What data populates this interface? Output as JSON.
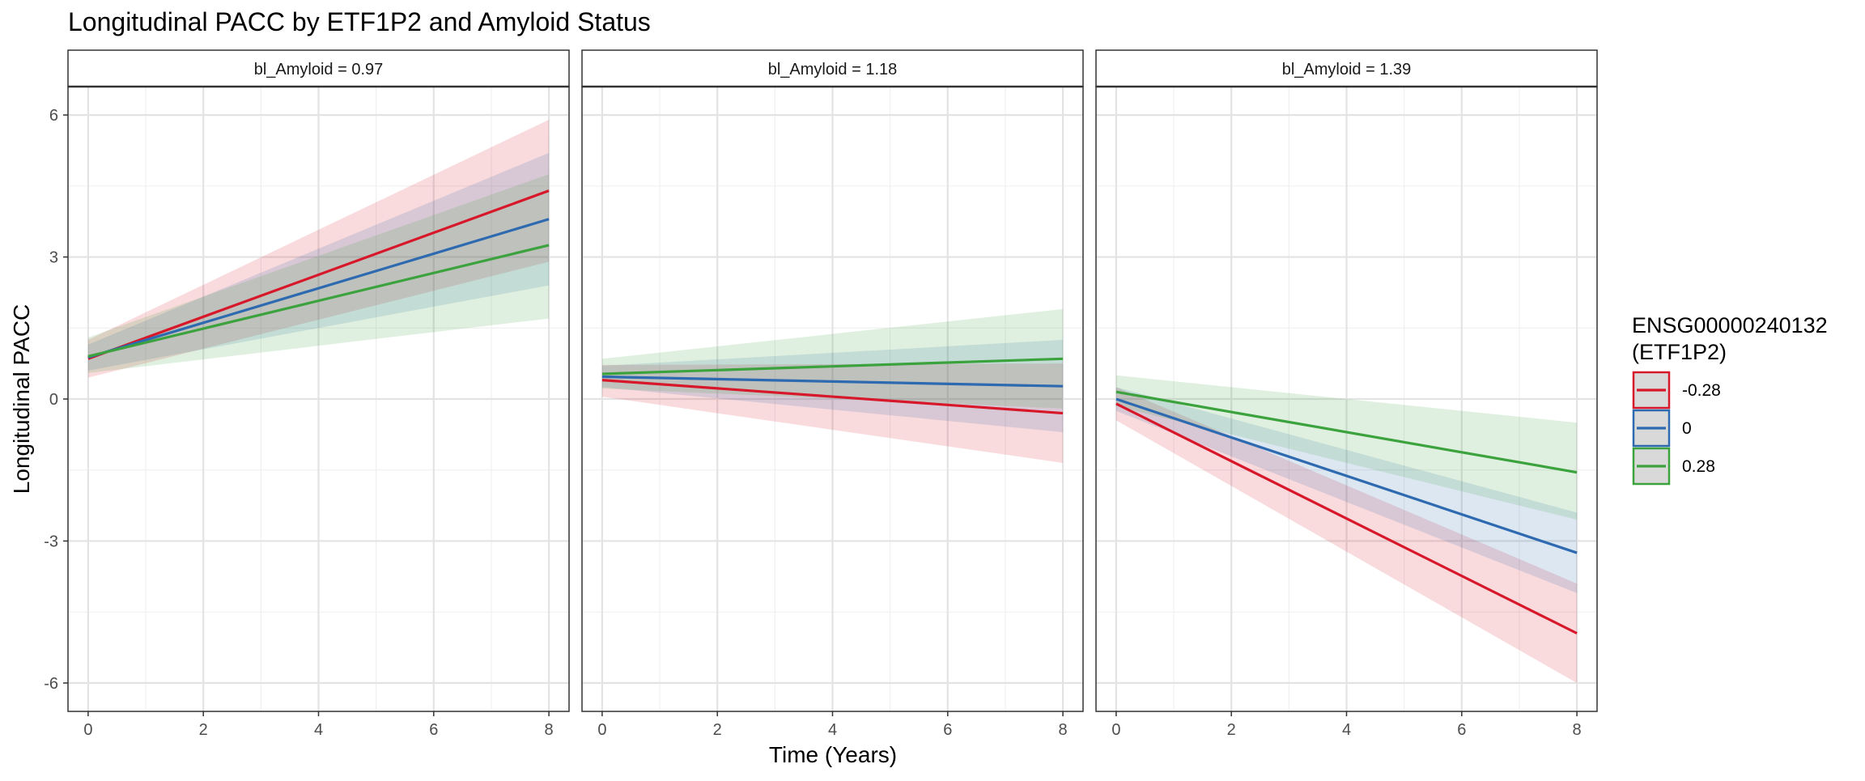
{
  "chart_data": {
    "type": "line",
    "title": "Longitudinal PACC by ETF1P2 and Amyloid Status",
    "xlabel": "Time (Years)",
    "ylabel": "Longitudinal PACC",
    "xlim": [
      -0.35,
      8.35
    ],
    "ylim": [
      -6.6,
      6.6
    ],
    "x_ticks": [
      0,
      2,
      4,
      6,
      8
    ],
    "y_ticks": [
      -6,
      -3,
      0,
      3,
      6
    ],
    "x_tick_labels": [
      "0",
      "2",
      "4",
      "6",
      "8"
    ],
    "y_tick_labels": [
      "-6",
      "-3",
      "0",
      "3",
      "6"
    ],
    "grid": true,
    "legend": {
      "title": "ENSG00000240132\n(ETF1P2)",
      "position": "right",
      "entries": [
        "-0.28",
        "0",
        "0.28"
      ]
    },
    "series_colors": [
      "#d7182a",
      "#2d6ab0",
      "#3ca23e"
    ],
    "panels": [
      {
        "label": "bl_Amyloid = 0.97",
        "series": [
          {
            "name": "-0.28",
            "x": [
              0,
              8
            ],
            "y": [
              0.85,
              4.4
            ],
            "ci_lower": [
              0.45,
              2.9
            ],
            "ci_upper": [
              1.25,
              5.9
            ]
          },
          {
            "name": "0",
            "x": [
              0,
              8
            ],
            "y": [
              0.88,
              3.8
            ],
            "ci_lower": [
              0.6,
              2.4
            ],
            "ci_upper": [
              1.15,
              5.2
            ]
          },
          {
            "name": "0.28",
            "x": [
              0,
              8
            ],
            "y": [
              0.9,
              3.25
            ],
            "ci_lower": [
              0.55,
              1.7
            ],
            "ci_upper": [
              1.3,
              4.75
            ]
          }
        ]
      },
      {
        "label": "bl_Amyloid = 1.18",
        "series": [
          {
            "name": "-0.28",
            "x": [
              0,
              8
            ],
            "y": [
              0.4,
              -0.3
            ],
            "ci_lower": [
              0.05,
              -1.35
            ],
            "ci_upper": [
              0.72,
              0.75
            ]
          },
          {
            "name": "0",
            "x": [
              0,
              8
            ],
            "y": [
              0.47,
              0.27
            ],
            "ci_lower": [
              0.25,
              -0.7
            ],
            "ci_upper": [
              0.7,
              1.25
            ]
          },
          {
            "name": "0.28",
            "x": [
              0,
              8
            ],
            "y": [
              0.53,
              0.85
            ],
            "ci_lower": [
              0.22,
              -0.2
            ],
            "ci_upper": [
              0.85,
              1.9
            ]
          }
        ]
      },
      {
        "label": "bl_Amyloid = 1.39",
        "series": [
          {
            "name": "-0.28",
            "x": [
              0,
              8
            ],
            "y": [
              -0.1,
              -4.95
            ],
            "ci_lower": [
              -0.45,
              -6.0
            ],
            "ci_upper": [
              0.25,
              -3.9
            ]
          },
          {
            "name": "0",
            "x": [
              0,
              8
            ],
            "y": [
              0.0,
              -3.25
            ],
            "ci_lower": [
              -0.25,
              -4.1
            ],
            "ci_upper": [
              0.25,
              -2.4
            ]
          },
          {
            "name": "0.28",
            "x": [
              0,
              8
            ],
            "y": [
              0.15,
              -1.55
            ],
            "ci_lower": [
              -0.15,
              -2.55
            ],
            "ci_upper": [
              0.5,
              -0.5
            ]
          }
        ]
      }
    ]
  }
}
